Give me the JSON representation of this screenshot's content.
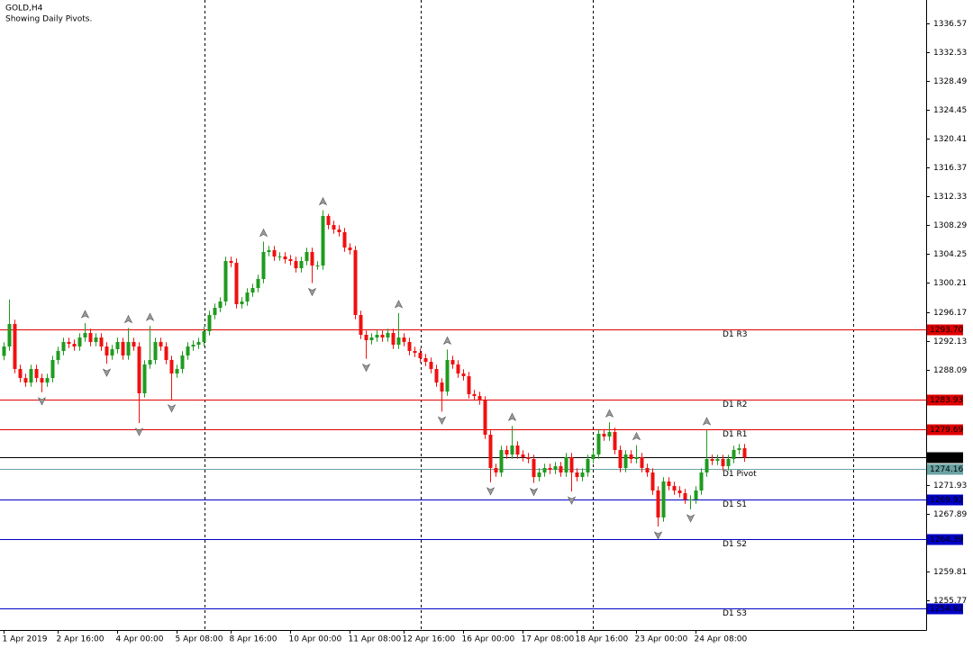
{
  "chart_data": {
    "type": "candlestick",
    "title": "GOLD,H4",
    "subtitle": "Showing Daily Pivots.",
    "up_color": "#1f9b1f",
    "down_color": "#f01010",
    "fractal_color": "#9a9a9a",
    "categories": [
      "1 Apr 2019",
      null,
      null,
      null,
      null,
      null,
      null,
      null,
      null,
      null,
      "2 Apr 16:00",
      null,
      null,
      null,
      null,
      null,
      null,
      null,
      null,
      null,
      null,
      "4 Apr 00:00",
      null,
      null,
      null,
      null,
      null,
      null,
      null,
      null,
      null,
      null,
      "5 Apr 08:00",
      null,
      null,
      null,
      null,
      null,
      null,
      null,
      null,
      null,
      "8 Apr 16:00",
      null,
      null,
      null,
      null,
      null,
      null,
      null,
      null,
      null,
      null,
      "10 Apr 00:00",
      null,
      null,
      null,
      null,
      null,
      null,
      null,
      null,
      null,
      null,
      "11 Apr 08:00",
      null,
      null,
      null,
      null,
      null,
      null,
      null,
      null,
      null,
      "12 Apr 16:00",
      null,
      null,
      null,
      null,
      null,
      null,
      null,
      null,
      null,
      null,
      "16 Apr 00:00",
      null,
      null,
      null,
      null,
      null,
      null,
      null,
      null,
      null,
      null,
      "17 Apr 08:00",
      null,
      null,
      null,
      null,
      null,
      null,
      null,
      null,
      null,
      "18 Apr 16:00",
      null,
      null,
      null,
      null,
      null,
      null,
      null,
      null,
      null,
      null,
      "23 Apr 00:00",
      null,
      null,
      null,
      null,
      null,
      null,
      null,
      null,
      null,
      null,
      "24 Apr 08:00",
      null,
      null,
      null,
      null,
      null,
      null,
      null,
      null,
      null
    ],
    "open": [
      1290,
      1291.32,
      1294.47,
      1288.17,
      1286.9,
      1286.27,
      1288.17,
      1286.9,
      1286.27,
      1286.9,
      1289.43,
      1290.69,
      1291.95,
      1291.69,
      1291.32,
      1292.58,
      1293.21,
      1291.95,
      1292.58,
      1291.32,
      1290.06,
      1290.94,
      1291.95,
      1290.06,
      1291.95,
      1291.32,
      1284.76,
      1288.8,
      1289.43,
      1291.95,
      1291.32,
      1289.43,
      1287.54,
      1288.17,
      1290.06,
      1291.32,
      1291.57,
      1291.95,
      1293.46,
      1295.73,
      1296.74,
      1297.62,
      1303.29,
      1303.04,
      1297.24,
      1297.62,
      1298.88,
      1299.51,
      1300.77,
      1304.55,
      1304.81,
      1303.92,
      1303.92,
      1303.54,
      1303.29,
      1302.28,
      1303.29,
      1304.55,
      1302.66,
      1302.66,
      1309.6,
      1308.33,
      1307.7,
      1307.33,
      1305.18,
      1304.81,
      1295.73,
      1292.96,
      1292.2,
      1292.58,
      1292.96,
      1292.58,
      1293.21,
      1291.57,
      1292.58,
      1291.95,
      1290.69,
      1290.43,
      1289.68,
      1289.17,
      1288.17,
      1286.27,
      1285.01,
      1289.43,
      1288.8,
      1287.54,
      1287.16,
      1284.64,
      1284.38,
      1283.75,
      1278.96,
      1274.3,
      1273.67,
      1276.82,
      1276.19,
      1277.45,
      1276.19,
      1275.81,
      1275.56,
      1273.04,
      1273.67,
      1274.3,
      1274.05,
      1274.55,
      1273.67,
      1275.81,
      1273.67,
      1273.04,
      1273.67,
      1275.56,
      1276.19,
      1279.09,
      1278.71,
      1279.34,
      1276.82,
      1274.3,
      1276.19,
      1275.56,
      1275.81,
      1274.3,
      1273.67,
      1271.15,
      1267.37,
      1272.41,
      1271.78,
      1271.15,
      1270.77,
      1269.89,
      1269.89,
      1271.15,
      1273.67,
      1275.56,
      1275.31,
      1275.56,
      1274.55,
      1275.56,
      1276.82,
      1277.07
    ],
    "high": [
      1291.92,
      1297.9,
      1295.07,
      1288.77,
      1287.5,
      1288.77,
      1288.77,
      1287.5,
      1287.5,
      1290.03,
      1291.29,
      1292.55,
      1292.55,
      1292.29,
      1293.18,
      1294.6,
      1293.81,
      1293.18,
      1293.18,
      1291.92,
      1291.54,
      1292.55,
      1292.55,
      1293.9,
      1292.55,
      1291.92,
      1289.4,
      1294.2,
      1292.55,
      1292.55,
      1291.92,
      1290.03,
      1288.77,
      1290.66,
      1291.92,
      1292.17,
      1292.55,
      1294.06,
      1296.33,
      1297.34,
      1298.22,
      1303.89,
      1303.89,
      1303.64,
      1298.22,
      1299.48,
      1300.11,
      1301.37,
      1306,
      1305.41,
      1305.41,
      1304.52,
      1304.52,
      1304.14,
      1303.89,
      1303.89,
      1305.15,
      1305.15,
      1303.26,
      1310.4,
      1309.9,
      1308.93,
      1308.3,
      1307.93,
      1305.78,
      1305.41,
      1296.33,
      1293.56,
      1293.18,
      1293.56,
      1293.56,
      1293.81,
      1293.81,
      1296,
      1293.18,
      1292.55,
      1291.29,
      1291.03,
      1290.28,
      1289.77,
      1288.77,
      1286.87,
      1290.9,
      1290.03,
      1289.4,
      1288.14,
      1287.76,
      1285.24,
      1284.98,
      1284.35,
      1279.56,
      1274.9,
      1277.42,
      1277.42,
      1280.2,
      1278.05,
      1276.79,
      1276.41,
      1276.16,
      1274.27,
      1274.9,
      1274.9,
      1275.15,
      1275.15,
      1276.41,
      1276.41,
      1274.27,
      1274.27,
      1276.16,
      1276.79,
      1279.69,
      1279.69,
      1280.7,
      1279.94,
      1277.42,
      1276.79,
      1276.79,
      1277.5,
      1276.41,
      1274.9,
      1274.27,
      1271.75,
      1273.01,
      1273.01,
      1272.38,
      1271.75,
      1271.37,
      1270.49,
      1271.75,
      1274.27,
      1279.6,
      1276.16,
      1276.16,
      1276.16,
      1276.16,
      1277.42,
      1277.67,
      1277.67
    ],
    "low": [
      1289.4,
      1290.72,
      1287.57,
      1286.3,
      1285.67,
      1285.67,
      1286.3,
      1284.9,
      1285.67,
      1286.3,
      1288.83,
      1290.09,
      1291.09,
      1290.72,
      1290.72,
      1291.98,
      1291.35,
      1291.35,
      1290.72,
      1288.9,
      1289.46,
      1290.34,
      1289.46,
      1289.46,
      1290.72,
      1280.6,
      1284.16,
      1288.2,
      1288.83,
      1290.72,
      1288.83,
      1283.9,
      1286.94,
      1287.57,
      1289.46,
      1290.72,
      1290.97,
      1291.35,
      1292.86,
      1295.13,
      1296.14,
      1297.02,
      1302.44,
      1296.64,
      1296.64,
      1297.02,
      1298.28,
      1298.91,
      1300.17,
      1303.95,
      1303.32,
      1303.32,
      1302.94,
      1302.69,
      1301.68,
      1301.68,
      1302.69,
      1300.2,
      1302.06,
      1302.06,
      1307.73,
      1307.1,
      1306.73,
      1304.58,
      1304.21,
      1295.13,
      1292.36,
      1289.6,
      1291.6,
      1291.98,
      1291.98,
      1291.98,
      1290.97,
      1290.97,
      1291.35,
      1290.09,
      1289.83,
      1289.08,
      1288.57,
      1287.57,
      1285.67,
      1282.2,
      1284.41,
      1288.2,
      1286.94,
      1286.56,
      1284.04,
      1283.78,
      1283.15,
      1278.36,
      1272.3,
      1273.07,
      1273.07,
      1275.59,
      1275.59,
      1275.59,
      1275.21,
      1274.96,
      1272.2,
      1272.44,
      1273.07,
      1273.45,
      1273.45,
      1273.07,
      1273.07,
      1271,
      1272.44,
      1272.44,
      1273.07,
      1274.96,
      1275.59,
      1278.11,
      1278.11,
      1276.22,
      1273.7,
      1273.7,
      1274.96,
      1274.96,
      1273.7,
      1273.07,
      1270.55,
      1266.1,
      1266.77,
      1271.18,
      1270.55,
      1270.17,
      1269.29,
      1268.5,
      1269.29,
      1270.55,
      1273.07,
      1274.71,
      1274.71,
      1273.95,
      1273.95,
      1274.96,
      1276.22,
      1275.17
    ],
    "close": [
      1291.32,
      1294.47,
      1288.17,
      1286.9,
      1286.27,
      1288.17,
      1286.9,
      1286.27,
      1286.9,
      1289.43,
      1290.69,
      1291.95,
      1291.69,
      1291.32,
      1292.58,
      1293.21,
      1291.95,
      1292.58,
      1291.32,
      1290.06,
      1290.94,
      1291.95,
      1290.06,
      1291.95,
      1291.32,
      1284.76,
      1288.8,
      1289.43,
      1291.95,
      1291.32,
      1289.43,
      1287.54,
      1288.17,
      1290.06,
      1291.32,
      1291.57,
      1291.95,
      1293.46,
      1295.73,
      1296.74,
      1297.62,
      1303.29,
      1303.04,
      1297.24,
      1297.62,
      1298.88,
      1299.51,
      1300.77,
      1304.55,
      1304.81,
      1303.92,
      1303.92,
      1303.54,
      1303.29,
      1302.28,
      1303.29,
      1304.55,
      1302.66,
      1302.66,
      1309.6,
      1308.33,
      1307.7,
      1307.33,
      1305.18,
      1304.81,
      1295.73,
      1292.96,
      1292.2,
      1292.58,
      1292.96,
      1292.58,
      1293.21,
      1291.57,
      1292.58,
      1291.95,
      1290.69,
      1290.43,
      1289.68,
      1289.17,
      1288.17,
      1286.27,
      1285.01,
      1289.43,
      1288.8,
      1287.54,
      1287.16,
      1284.64,
      1284.38,
      1283.75,
      1278.96,
      1274.3,
      1273.67,
      1276.82,
      1276.19,
      1277.45,
      1276.19,
      1275.81,
      1275.56,
      1273.04,
      1273.67,
      1274.3,
      1274.05,
      1274.55,
      1273.67,
      1275.81,
      1273.67,
      1273.04,
      1273.67,
      1275.56,
      1276.19,
      1279.09,
      1278.71,
      1279.34,
      1276.82,
      1274.3,
      1276.19,
      1275.56,
      1275.81,
      1274.3,
      1273.67,
      1271.15,
      1267.37,
      1272.41,
      1271.78,
      1271.15,
      1270.77,
      1269.89,
      1269.89,
      1271.15,
      1273.67,
      1275.56,
      1275.31,
      1275.56,
      1274.55,
      1275.56,
      1276.82,
      1277.07,
      1275.77
    ],
    "ylim": [
      1251.61,
      1339.85
    ],
    "yticks": [
      1336.57,
      1332.53,
      1328.49,
      1324.45,
      1320.41,
      1316.37,
      1312.33,
      1308.29,
      1304.25,
      1300.21,
      1296.17,
      1292.13,
      1288.09,
      1271.93,
      1267.89,
      1259.81,
      1255.77
    ],
    "levels": [
      {
        "name": "D1 R3",
        "value": 1293.7,
        "label": "1293.70",
        "color": "#e00000"
      },
      {
        "name": "D1 R2",
        "value": 1283.93,
        "label": "1283.93",
        "color": "#e00000"
      },
      {
        "name": "D1 R1",
        "value": 1279.69,
        "label": "1279.69",
        "color": "#e00000"
      },
      {
        "value": 1275.77,
        "label": "1275.77",
        "color": "#000000"
      },
      {
        "name": "D1 Pivot",
        "value": 1274.16,
        "label": "1274.16",
        "color": "#6aa3a3"
      },
      {
        "name": "D1 S1",
        "value": 1269.92,
        "label": "1269.92",
        "color": "#0000c8"
      },
      {
        "name": "D1 S2",
        "value": 1264.39,
        "label": "1264.39",
        "color": "#0000c8"
      },
      {
        "name": "D1 S3",
        "value": 1254.62,
        "label": "1254.62",
        "color": "#0000c8"
      }
    ]
  }
}
